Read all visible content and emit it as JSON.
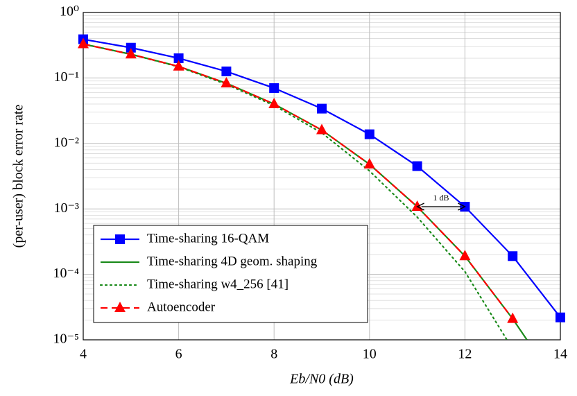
{
  "chart_data": {
    "type": "line",
    "log_y": true,
    "grid": true,
    "legend_corner": "lower left",
    "xlabel": "Eb/N0 (dB)",
    "ylabel": "(per-user) block error rate",
    "xlim": [
      4,
      14
    ],
    "xticks": [
      4,
      6,
      8,
      10,
      12,
      14
    ],
    "ylim": [
      1e-05,
      1
    ],
    "yticks": [
      {
        "value": 1,
        "label": "10⁰"
      },
      {
        "value": 0.1,
        "label": "10⁻¹"
      },
      {
        "value": 0.01,
        "label": "10⁻²"
      },
      {
        "value": 0.001,
        "label": "10⁻³"
      },
      {
        "value": 0.0001,
        "label": "10⁻⁴"
      },
      {
        "value": 1e-05,
        "label": "10⁻⁵"
      }
    ],
    "y_minor_ticks": [
      2e-05,
      3e-05,
      4e-05,
      5e-05,
      6e-05,
      7e-05,
      8e-05,
      9e-05,
      0.0002,
      0.0003,
      0.0004,
      0.0005,
      0.0006,
      0.0007,
      0.0008,
      0.0009,
      0.002,
      0.003,
      0.004,
      0.005,
      0.006,
      0.007,
      0.008,
      0.009,
      0.02,
      0.03,
      0.04,
      0.05,
      0.06,
      0.07,
      0.08,
      0.09,
      0.2,
      0.3,
      0.4,
      0.5,
      0.6,
      0.7,
      0.8,
      0.9
    ],
    "series": [
      {
        "name": "Time-sharing 16-QAM",
        "color": "#0000ff",
        "dash": "solid",
        "marker": "square",
        "x": [
          4,
          5,
          6,
          7,
          8,
          9,
          10,
          11,
          12,
          13,
          14
        ],
        "values": [
          0.39,
          0.29,
          0.2,
          0.126,
          0.07,
          0.034,
          0.0138,
          0.0045,
          0.00108,
          0.00019,
          2.2e-05
        ]
      },
      {
        "name": "Time-sharing 4D geom. shaping",
        "color": "#1a8a1a",
        "dash": "solid",
        "marker": "none",
        "x": [
          4,
          5,
          6,
          7,
          8,
          9,
          10,
          11,
          12,
          13,
          13.3
        ],
        "values": [
          0.33,
          0.23,
          0.15,
          0.083,
          0.04,
          0.016,
          0.0048,
          0.00108,
          0.00019,
          2.1e-05,
          1e-05
        ]
      },
      {
        "name": "Time-sharing w4_256 [41]",
        "color": "#1a8a1a",
        "dash": "dotted",
        "marker": "none",
        "x": [
          4,
          5,
          6,
          7,
          8,
          9,
          10,
          11,
          12,
          12.88
        ],
        "values": [
          0.33,
          0.23,
          0.148,
          0.08,
          0.038,
          0.0145,
          0.0038,
          0.00075,
          0.00011,
          1e-05
        ]
      },
      {
        "name": "Autoencoder",
        "color": "#ff0000",
        "dash": "dashed",
        "marker": "triangle",
        "x": [
          4,
          5,
          6,
          7,
          8,
          9,
          10,
          11,
          12,
          13
        ],
        "values": [
          0.33,
          0.23,
          0.15,
          0.083,
          0.04,
          0.016,
          0.0048,
          0.00108,
          0.00019,
          2.1e-05
        ]
      }
    ],
    "annotation": {
      "text": "1 dB",
      "x": [
        11,
        12
      ],
      "y": 0.00108
    }
  }
}
